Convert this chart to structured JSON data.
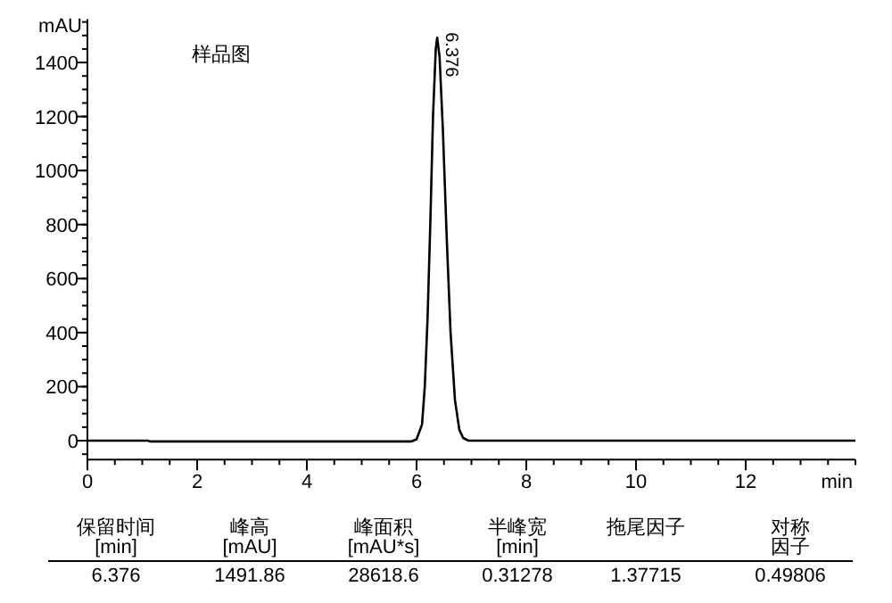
{
  "chart_data": {
    "type": "line",
    "title": "样品图",
    "xlabel": "min",
    "ylabel": "mAU",
    "x": [
      0,
      1.1,
      1.15,
      5.9,
      6.0,
      6.1,
      6.15,
      6.2,
      6.25,
      6.3,
      6.35,
      6.376,
      6.42,
      6.48,
      6.55,
      6.62,
      6.7,
      6.78,
      6.85,
      6.95,
      14
    ],
    "series": [
      {
        "color": "#000000",
        "values": [
          0,
          0,
          -3,
          -3,
          5,
          60,
          200,
          450,
          800,
          1200,
          1450,
          1491.86,
          1420,
          1150,
          750,
          400,
          150,
          40,
          10,
          0,
          0
        ]
      }
    ],
    "xlim": [
      0,
      14
    ],
    "xticks": [
      0,
      2,
      4,
      6,
      8,
      10,
      12
    ],
    "ylim": [
      -70,
      1560
    ],
    "yticks": [
      0,
      200,
      400,
      600,
      800,
      1000,
      1200,
      1400
    ],
    "grid": false,
    "marker": "none",
    "line_style": "solid",
    "annotations": [
      {
        "text": "6.376",
        "x": 6.376,
        "y": 1491.86
      },
      "保留时间\n[min]",
      "峰高\n[mAU]",
      "峰面积\n[mAU*s]",
      "半峰宽\n[min]",
      "拖尾因子",
      "对称因子",
      "6.376",
      "1491.86",
      "28618.6",
      "0.31278",
      "1.37715",
      "0.49806"
    ]
  }
}
